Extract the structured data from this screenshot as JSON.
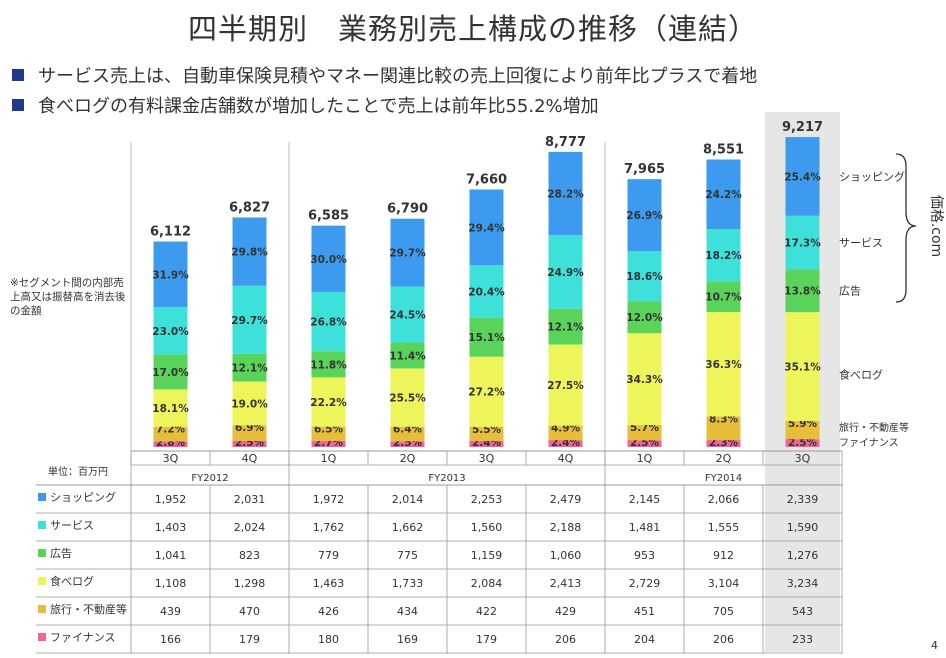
{
  "title": "四半期別　業務別売上構成の推移（連結）",
  "bullets": [
    "サービス売上は、自動車保険見積やマネー関連比較の売上回復により前年比プラスで着地",
    "食べログの有料課金店舗数が増加したことで売上は前年比55.2%増加"
  ],
  "note": "※セグメント間の内部売上高又は振替高を消去後の金額",
  "unit_label": "単位：百万円",
  "brace_label": "価格.com",
  "page_number": "4",
  "colors": {
    "shopping": "#3d9bef",
    "service": "#3ee0da",
    "ad": "#5ad35a",
    "tabelog": "#eef55a",
    "travel": "#e6be3a",
    "finance": "#f2639a",
    "highlight": "#e6e6e6"
  },
  "chart_data": {
    "type": "bar",
    "stacked": true,
    "title": "四半期別　業務別売上構成の推移（連結）",
    "categories": [
      "3Q",
      "4Q",
      "1Q",
      "2Q",
      "3Q",
      "4Q",
      "1Q",
      "2Q",
      "3Q"
    ],
    "fiscal_years": [
      {
        "label": "FY2012",
        "start": 0,
        "end": 1
      },
      {
        "label": "FY2013",
        "start": 2,
        "end": 5
      },
      {
        "label": "FY2014",
        "start": 6,
        "end": 8
      }
    ],
    "highlight_index": 8,
    "totals": [
      6112,
      6827,
      6585,
      6790,
      7660,
      8777,
      7965,
      8551,
      9217
    ],
    "total_labels": [
      "6,112",
      "6,827",
      "6,585",
      "6,790",
      "7,660",
      "8,777",
      "7,965",
      "8,551",
      "9,217"
    ],
    "series": [
      {
        "key": "finance",
        "name": "ファイナンス",
        "values": [
          166,
          179,
          180,
          169,
          179,
          206,
          204,
          206,
          233
        ],
        "table": [
          "166",
          "179",
          "180",
          "169",
          "179",
          "206",
          "204",
          "206",
          "233"
        ],
        "pct": [
          "2.8%",
          "2.5%",
          "2.7%",
          "2.5%",
          "2.4%",
          "2.4%",
          "2.5%",
          "2.3%",
          "2.5%"
        ]
      },
      {
        "key": "travel",
        "name": "旅行・不動産等",
        "values": [
          439,
          470,
          426,
          434,
          422,
          429,
          451,
          705,
          543
        ],
        "table": [
          "439",
          "470",
          "426",
          "434",
          "422",
          "429",
          "451",
          "705",
          "543"
        ],
        "pct": [
          "7.2%",
          "6.9%",
          "6.5%",
          "6.4%",
          "5.5%",
          "4.9%",
          "5.7%",
          "8.3%",
          "5.9%"
        ]
      },
      {
        "key": "tabelog",
        "name": "食べログ",
        "values": [
          1108,
          1298,
          1463,
          1733,
          2084,
          2413,
          2729,
          3104,
          3234
        ],
        "table": [
          "1,108",
          "1,298",
          "1,463",
          "1,733",
          "2,084",
          "2,413",
          "2,729",
          "3,104",
          "3,234"
        ],
        "pct": [
          "18.1%",
          "19.0%",
          "22.2%",
          "25.5%",
          "27.2%",
          "27.5%",
          "34.3%",
          "36.3%",
          "35.1%"
        ]
      },
      {
        "key": "ad",
        "name": "広告",
        "values": [
          1041,
          823,
          779,
          775,
          1159,
          1060,
          953,
          912,
          1276
        ],
        "table": [
          "1,041",
          "823",
          "779",
          "775",
          "1,159",
          "1,060",
          "953",
          "912",
          "1,276"
        ],
        "pct": [
          "17.0%",
          "12.1%",
          "11.8%",
          "11.4%",
          "15.1%",
          "12.1%",
          "12.0%",
          "10.7%",
          "13.8%"
        ]
      },
      {
        "key": "service",
        "name": "サービス",
        "values": [
          1403,
          2024,
          1762,
          1662,
          1560,
          2188,
          1481,
          1555,
          1590
        ],
        "table": [
          "1,403",
          "2,024",
          "1,762",
          "1,662",
          "1,560",
          "2,188",
          "1,481",
          "1,555",
          "1,590"
        ],
        "pct": [
          "23.0%",
          "29.7%",
          "26.8%",
          "24.5%",
          "20.4%",
          "24.9%",
          "18.6%",
          "18.2%",
          "17.3%"
        ]
      },
      {
        "key": "shopping",
        "name": "ショッピング",
        "values": [
          1952,
          2031,
          1972,
          2014,
          2253,
          2479,
          2145,
          2066,
          2339
        ],
        "table": [
          "1,952",
          "2,031",
          "1,972",
          "2,014",
          "2,253",
          "2,479",
          "2,145",
          "2,066",
          "2,339"
        ],
        "pct": [
          "31.9%",
          "29.8%",
          "30.0%",
          "29.7%",
          "29.4%",
          "28.2%",
          "26.9%",
          "24.2%",
          "25.4%"
        ]
      }
    ],
    "right_labels": {
      "shopping": "ショッピング",
      "service": "サービス",
      "ad": "広告",
      "tabelog": "食べログ",
      "travel": "旅行・不動産等",
      "finance": "ファイナンス"
    },
    "table_row_order": [
      "shopping",
      "service",
      "ad",
      "tabelog",
      "travel",
      "finance"
    ]
  }
}
